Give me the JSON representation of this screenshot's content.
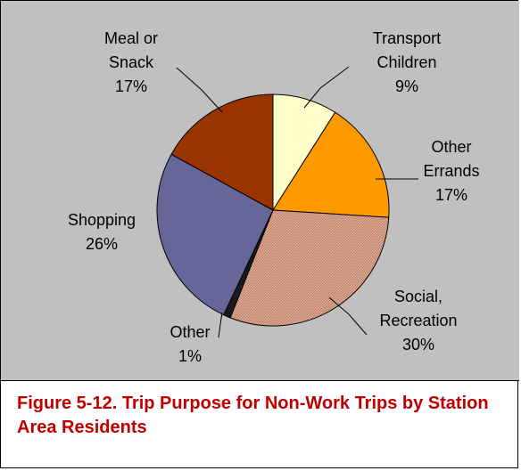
{
  "chart_data": {
    "type": "pie",
    "title": "",
    "caption": "Figure 5-12. Trip Purpose for Non-Work Trips by Station Area Residents",
    "slices": [
      {
        "key": "transport",
        "label_lines": [
          "Transport",
          "Children"
        ],
        "value_label": "9%",
        "value": 9,
        "color": "#ffffcc"
      },
      {
        "key": "errands",
        "label_lines": [
          "Other",
          "Errands"
        ],
        "value_label": "17%",
        "value": 17,
        "color": "#ff9900"
      },
      {
        "key": "social",
        "label_lines": [
          "Social,",
          "Recreation"
        ],
        "value_label": "30%",
        "value": 30,
        "color": "#e0a890"
      },
      {
        "key": "other",
        "label_lines": [
          "Other"
        ],
        "value_label": "1%",
        "value": 1,
        "color": "#1a1a1a"
      },
      {
        "key": "shopping",
        "label_lines": [
          "Shopping"
        ],
        "value_label": "26%",
        "value": 26,
        "color": "#666699"
      },
      {
        "key": "meal",
        "label_lines": [
          "Meal or",
          "Snack"
        ],
        "value_label": "17%",
        "value": 17,
        "color": "#993300"
      }
    ],
    "legend": "none",
    "start_angle": "12 o'clock, clockwise",
    "background": "#c0c0c0"
  }
}
